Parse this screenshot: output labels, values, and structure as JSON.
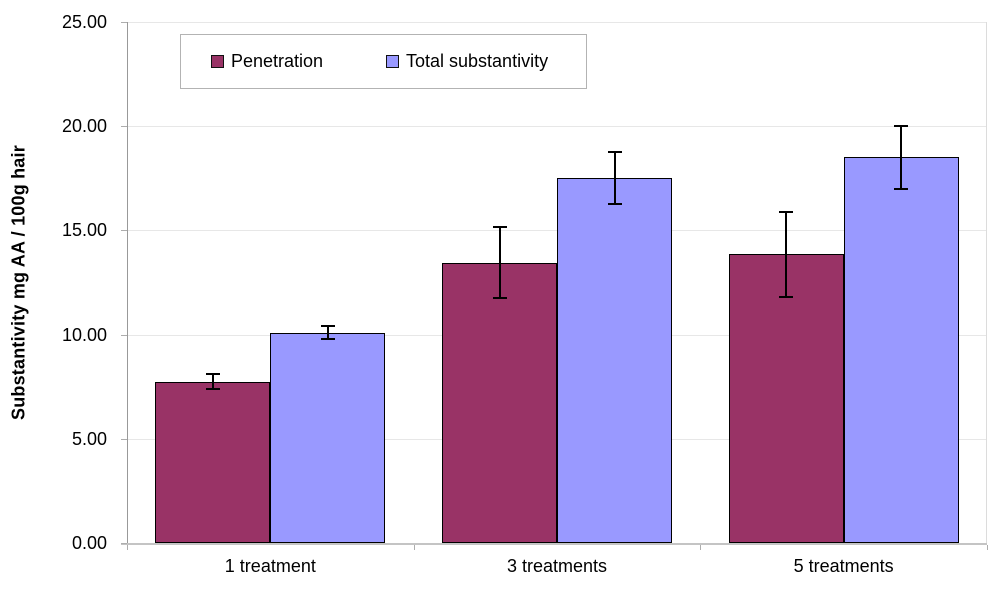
{
  "chart_data": {
    "type": "bar",
    "title": "",
    "xlabel": "",
    "ylabel": "Substantivity mg AA / 100g hair",
    "categories": [
      "1 treatment",
      "3 treatments",
      "5 treatments"
    ],
    "series": [
      {
        "name": "Penetration",
        "color": "#993366",
        "values": [
          7.75,
          13.45,
          13.85
        ],
        "errors": [
          0.4,
          1.75,
          2.1
        ]
      },
      {
        "name": "Total substantivity",
        "color": "#9999FF",
        "values": [
          10.1,
          17.5,
          18.5
        ],
        "errors": [
          0.35,
          1.3,
          1.55
        ]
      }
    ],
    "ylim": [
      0,
      25
    ],
    "ytick_step": 5,
    "ytick_labels": [
      "0.00",
      "5.00",
      "10.00",
      "15.00",
      "20.00",
      "25.00"
    ],
    "grid": true,
    "legend_position": "top-center",
    "error_bars": true
  },
  "colors": {
    "background": "#FFFFFF",
    "gridline": "#E7E7E7",
    "axis_left": "#999999",
    "axis_bottom": "#C4C4C4",
    "plot_right_border": "#DCDCDC",
    "tick": "#ADADAD",
    "bar_border": "#000000",
    "error_bar": "#000000",
    "legend_border": "#B3B3B3",
    "text": "#000000"
  }
}
